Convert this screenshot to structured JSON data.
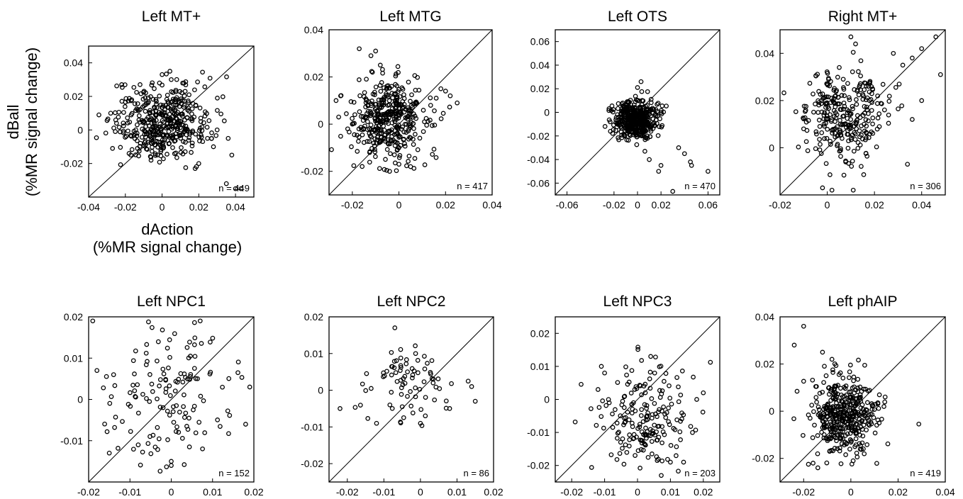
{
  "figure": {
    "x_label_line1": "dAction",
    "x_label_line2": "(%MR signal change)",
    "y_label_line1": "dBall",
    "y_label_line2": "(%MR signal change)"
  },
  "chart_data": [
    {
      "type": "scatter",
      "title": "Left MT+",
      "n_label": "n = 449",
      "xlim": [
        -0.04,
        0.05
      ],
      "ylim": [
        -0.04,
        0.05
      ],
      "xticks": [
        "-0.04",
        "-0.02",
        "0",
        "0.02",
        "0.04"
      ],
      "xtick_values": [
        -0.04,
        -0.02,
        0,
        0.02,
        0.04
      ],
      "yticks": [
        "-0.02",
        "0",
        "0.02",
        "0.04"
      ],
      "ytick_values": [
        -0.02,
        0,
        0.02,
        0.04
      ],
      "diagonal": true,
      "cloud": {
        "count": 449,
        "center": [
          0.0,
          0.005
        ],
        "sd": [
          0.013,
          0.011
        ]
      },
      "points": [
        [
          -0.018,
          -0.014
        ],
        [
          -0.017,
          -0.015
        ],
        [
          0.035,
          -0.032
        ],
        [
          0.04,
          -0.035
        ],
        [
          0.043,
          -0.035
        ],
        [
          0.038,
          -0.015
        ],
        [
          0.036,
          -0.005
        ],
        [
          0.0,
          0.033
        ],
        [
          0.005,
          0.03
        ],
        [
          -0.022,
          0.027
        ],
        [
          -0.012,
          0.027
        ],
        [
          -0.028,
          0.01
        ],
        [
          0.018,
          -0.023
        ],
        [
          0.02,
          -0.02
        ],
        [
          0.028,
          -0.01
        ],
        [
          0.03,
          0.0
        ]
      ]
    },
    {
      "type": "scatter",
      "title": "Left MTG",
      "n_label": "n = 417",
      "xlim": [
        -0.03,
        0.04
      ],
      "ylim": [
        -0.03,
        0.04
      ],
      "xticks": [
        "-0.02",
        "0",
        "0.02",
        "0.04"
      ],
      "xtick_values": [
        -0.02,
        0,
        0.02,
        0.04
      ],
      "yticks": [
        "-0.02",
        "0",
        "0.02",
        "0.04"
      ],
      "ytick_values": [
        -0.02,
        0,
        0.02,
        0.04
      ],
      "diagonal": true,
      "cloud": {
        "count": 417,
        "center": [
          -0.004,
          0.002
        ],
        "sd": [
          0.008,
          0.009
        ]
      },
      "points": [
        [
          -0.01,
          0.031
        ],
        [
          -0.012,
          0.029
        ],
        [
          -0.008,
          0.025
        ],
        [
          -0.027,
          0.01
        ],
        [
          -0.025,
          0.012
        ],
        [
          0.02,
          0.014
        ],
        [
          0.022,
          0.012
        ],
        [
          0.025,
          0.009
        ],
        [
          0.018,
          0.015
        ],
        [
          0.016,
          0.011
        ],
        [
          -0.004,
          -0.02
        ],
        [
          0.0,
          -0.017
        ],
        [
          0.005,
          -0.018
        ],
        [
          -0.02,
          0.0
        ],
        [
          -0.022,
          -0.002
        ]
      ]
    },
    {
      "type": "scatter",
      "title": "Left OTS",
      "n_label": "n = 470",
      "xlim": [
        -0.07,
        0.07
      ],
      "ylim": [
        -0.07,
        0.07
      ],
      "xticks": [
        "-0.06",
        "-0.02",
        "0",
        "0.02",
        "0.06"
      ],
      "xtick_values": [
        -0.06,
        -0.02,
        0,
        0.02,
        0.06
      ],
      "yticks": [
        "-0.06",
        "-0.04",
        "-0.02",
        "0",
        "0.02",
        "0.04",
        "0.06"
      ],
      "ytick_values": [
        -0.06,
        -0.04,
        -0.02,
        0,
        0.02,
        0.04,
        0.06
      ],
      "diagonal": true,
      "cloud": {
        "count": 470,
        "center": [
          -0.002,
          -0.006
        ],
        "sd": [
          0.009,
          0.008
        ]
      },
      "points": [
        [
          0.06,
          -0.05
        ],
        [
          0.046,
          -0.045
        ],
        [
          0.03,
          -0.067
        ],
        [
          0.035,
          -0.03
        ],
        [
          0.04,
          -0.035
        ],
        [
          0.045,
          -0.042
        ],
        [
          0.018,
          -0.05
        ],
        [
          0.02,
          -0.045
        ],
        [
          0.01,
          -0.04
        ],
        [
          0.003,
          0.026
        ],
        [
          0.0,
          0.021
        ]
      ]
    },
    {
      "type": "scatter",
      "title": "Right MT+",
      "n_label": "n = 306",
      "xlim": [
        -0.02,
        0.05
      ],
      "ylim": [
        -0.02,
        0.05
      ],
      "xticks": [
        "-0.02",
        "0",
        "0.02",
        "0.04"
      ],
      "xtick_values": [
        -0.02,
        0,
        0.02,
        0.04
      ],
      "yticks": [
        "0",
        "0.02",
        "0.04"
      ],
      "ytick_values": [
        0,
        0.02,
        0.04
      ],
      "diagonal": true,
      "cloud": {
        "count": 306,
        "center": [
          0.008,
          0.015
        ],
        "sd": [
          0.009,
          0.01
        ]
      },
      "points": [
        [
          0.046,
          0.047
        ],
        [
          0.048,
          0.031
        ],
        [
          0.04,
          0.042
        ],
        [
          0.036,
          0.038
        ],
        [
          0.032,
          0.035
        ],
        [
          0.028,
          0.04
        ],
        [
          0.034,
          -0.007
        ],
        [
          0.036,
          0.012
        ],
        [
          0.04,
          0.02
        ],
        [
          0.01,
          0.047
        ],
        [
          0.012,
          0.044
        ],
        [
          -0.002,
          -0.017
        ],
        [
          0.002,
          -0.018
        ],
        [
          0.011,
          -0.018
        ],
        [
          -0.01,
          0.008
        ]
      ]
    },
    {
      "type": "scatter",
      "title": "Left NPC1",
      "n_label": "n = 152",
      "xlim": [
        -0.02,
        0.02
      ],
      "ylim": [
        -0.02,
        0.02
      ],
      "xticks": [
        "-0.02",
        "-0.01",
        "0",
        "0.01",
        "0.02"
      ],
      "xtick_values": [
        -0.02,
        -0.01,
        0,
        0.01,
        0.02
      ],
      "yticks": [
        "-0.01",
        "0",
        "0.01",
        "0.02"
      ],
      "ytick_values": [
        -0.01,
        0,
        0.01,
        0.02
      ],
      "diagonal": true,
      "cloud": {
        "count": 152,
        "center": [
          -0.001,
          0.002
        ],
        "sd": [
          0.008,
          0.009
        ]
      },
      "points": [
        [
          -0.019,
          0.019
        ],
        [
          -0.018,
          0.007
        ],
        [
          -0.015,
          -0.013
        ],
        [
          0.019,
          0.003
        ],
        [
          0.018,
          -0.006
        ],
        [
          0.0,
          -0.016
        ],
        [
          0.0,
          -0.015
        ],
        [
          -0.008,
          -0.011
        ],
        [
          0.007,
          0.019
        ]
      ]
    },
    {
      "type": "scatter",
      "title": "Left NPC2",
      "n_label": "n = 86",
      "xlim": [
        -0.025,
        0.02
      ],
      "ylim": [
        -0.025,
        0.02
      ],
      "xticks": [
        "-0.02",
        "-0.01",
        "0",
        "0.01",
        "0.02"
      ],
      "xtick_values": [
        -0.02,
        -0.01,
        0,
        0.01,
        0.02
      ],
      "yticks": [
        "-0.02",
        "-0.01",
        "0",
        "0.01",
        "0.02"
      ],
      "ytick_values": [
        -0.02,
        -0.01,
        0,
        0.01,
        0.02
      ],
      "diagonal": true,
      "cloud": {
        "count": 86,
        "center": [
          -0.004,
          0.002
        ],
        "sd": [
          0.006,
          0.005
        ]
      },
      "points": [
        [
          -0.022,
          -0.005
        ],
        [
          -0.007,
          0.017
        ],
        [
          0.015,
          -0.003
        ],
        [
          0.014,
          0.001
        ],
        [
          0.008,
          -0.005
        ],
        [
          -0.012,
          -0.009
        ],
        [
          0.0,
          -0.009
        ]
      ]
    },
    {
      "type": "scatter",
      "title": "Left NPC3",
      "n_label": "n = 203",
      "xlim": [
        -0.025,
        0.025
      ],
      "ylim": [
        -0.025,
        0.025
      ],
      "xticks": [
        "-0.02",
        "-0.01",
        "0",
        "0.01",
        "0.02"
      ],
      "xtick_values": [
        -0.02,
        -0.01,
        0,
        0.01,
        0.02
      ],
      "yticks": [
        "-0.02",
        "-0.01",
        "0",
        "0.01",
        "0.02"
      ],
      "ytick_values": [
        -0.02,
        -0.01,
        0,
        0.01,
        0.02
      ],
      "diagonal": true,
      "cloud": {
        "count": 203,
        "center": [
          0.003,
          -0.006
        ],
        "sd": [
          0.007,
          0.008
        ]
      },
      "points": [
        [
          -0.012,
          0.003
        ],
        [
          -0.011,
          0.01
        ],
        [
          -0.01,
          0.008
        ],
        [
          0.01,
          -0.019
        ],
        [
          0.014,
          -0.019
        ],
        [
          0.018,
          0.0
        ],
        [
          0.02,
          0.002
        ],
        [
          0.004,
          0.013
        ]
      ]
    },
    {
      "type": "scatter",
      "title": "Left phAIP",
      "n_label": "n = 419",
      "xlim": [
        -0.03,
        0.04
      ],
      "ylim": [
        -0.03,
        0.04
      ],
      "xticks": [
        "-0.02",
        "0",
        "0.02",
        "0.04"
      ],
      "xtick_values": [
        -0.02,
        0,
        0.02,
        0.04
      ],
      "yticks": [
        "-0.02",
        "0",
        "0.02",
        "0.04"
      ],
      "ytick_values": [
        -0.02,
        0,
        0.02,
        0.04
      ],
      "diagonal": true,
      "cloud": {
        "count": 419,
        "center": [
          -0.003,
          -0.002
        ],
        "sd": [
          0.007,
          0.008
        ]
      },
      "points": [
        [
          -0.02,
          0.036
        ],
        [
          -0.024,
          0.028
        ],
        [
          -0.012,
          0.025
        ],
        [
          -0.008,
          0.022
        ],
        [
          0.014,
          0.002
        ],
        [
          0.012,
          -0.005
        ],
        [
          -0.014,
          -0.024
        ],
        [
          -0.016,
          -0.022
        ]
      ]
    }
  ]
}
